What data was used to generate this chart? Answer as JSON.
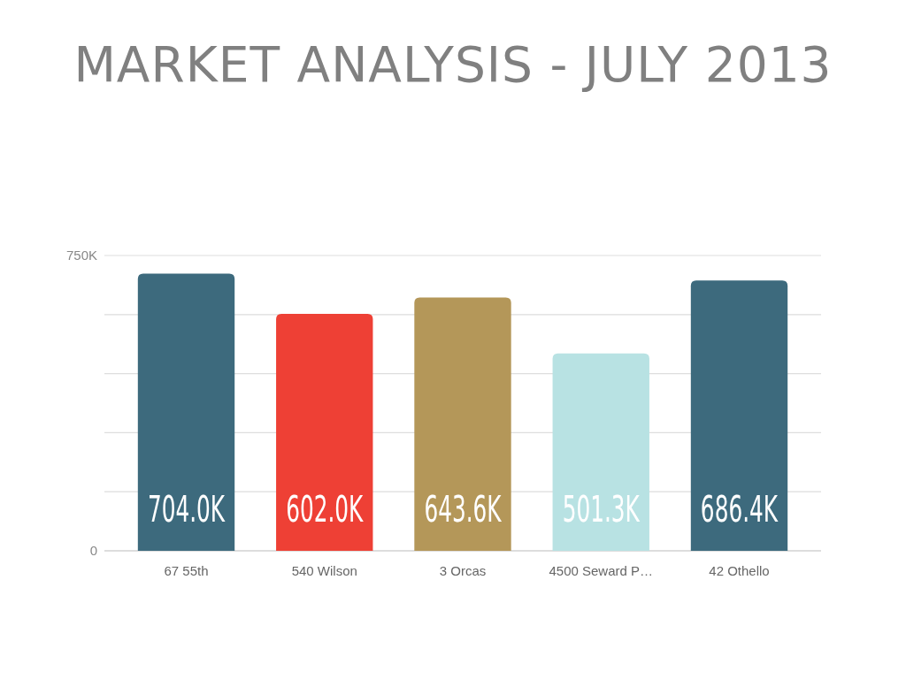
{
  "chart_data": {
    "type": "bar",
    "title": "MARKET ANALYSIS - JULY 2013",
    "categories": [
      "67 55th",
      "540 Wilson",
      "3 Orcas",
      "4500 Seward P…",
      "42 Othello"
    ],
    "values": [
      704000,
      602000,
      643600,
      501300,
      686400
    ],
    "colors": [
      "#3d6a7d",
      "#ee4035",
      "#b49759",
      "#b8e2e3",
      "#3d6a7d"
    ],
    "value_labels": [
      "704.0K",
      "602.0K",
      "643.6K",
      "501.3K",
      "686.4K"
    ],
    "ylim": [
      0,
      750000
    ],
    "yticks": [
      0,
      {
        "value": 150000,
        "label": null
      },
      {
        "value": 300000,
        "label": null
      },
      {
        "value": 450000,
        "label": null
      },
      {
        "value": 600000,
        "label": null
      },
      {
        "value": 750000,
        "label": "750K"
      }
    ],
    "grid": "y"
  }
}
